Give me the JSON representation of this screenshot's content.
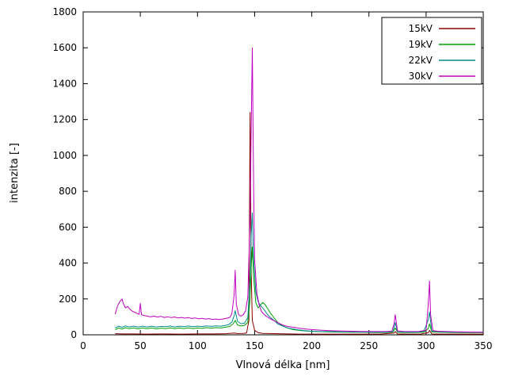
{
  "chart_data": {
    "type": "line",
    "title": "",
    "xlabel": "Vlnová délka [nm]",
    "ylabel": "intenzita [-]",
    "xlim": [
      0,
      350
    ],
    "ylim": [
      0,
      1800
    ],
    "xticks": [
      0,
      50,
      100,
      150,
      200,
      250,
      300,
      350
    ],
    "yticks": [
      0,
      200,
      400,
      600,
      800,
      1000,
      1200,
      1400,
      1600,
      1800
    ],
    "grid": false,
    "legend": {
      "position": "top-right",
      "box": true
    },
    "series": [
      {
        "name": "15kV",
        "color": "#8b0000",
        "points": [
          [
            28,
            6
          ],
          [
            35,
            5
          ],
          [
            45,
            5
          ],
          [
            55,
            4
          ],
          [
            70,
            5
          ],
          [
            85,
            4
          ],
          [
            100,
            5
          ],
          [
            115,
            5
          ],
          [
            125,
            6
          ],
          [
            132,
            10
          ],
          [
            135,
            7
          ],
          [
            140,
            8
          ],
          [
            143,
            10
          ],
          [
            145,
            80
          ],
          [
            146,
            1240
          ],
          [
            147,
            350
          ],
          [
            148,
            80
          ],
          [
            150,
            25
          ],
          [
            153,
            12
          ],
          [
            157,
            8
          ],
          [
            162,
            7
          ],
          [
            170,
            6
          ],
          [
            180,
            5
          ],
          [
            190,
            4
          ],
          [
            200,
            4
          ],
          [
            215,
            4
          ],
          [
            230,
            4
          ],
          [
            245,
            4
          ],
          [
            260,
            4
          ],
          [
            272,
            10
          ],
          [
            273,
            18
          ],
          [
            275,
            5
          ],
          [
            285,
            4
          ],
          [
            295,
            4
          ],
          [
            302,
            12
          ],
          [
            303,
            25
          ],
          [
            305,
            5
          ],
          [
            315,
            4
          ],
          [
            330,
            4
          ],
          [
            350,
            4
          ]
        ]
      },
      {
        "name": "19kV",
        "color": "#00a000",
        "points": [
          [
            28,
            28
          ],
          [
            31,
            38
          ],
          [
            34,
            32
          ],
          [
            37,
            40
          ],
          [
            40,
            34
          ],
          [
            44,
            38
          ],
          [
            48,
            33
          ],
          [
            52,
            38
          ],
          [
            56,
            34
          ],
          [
            60,
            38
          ],
          [
            64,
            33
          ],
          [
            68,
            37
          ],
          [
            72,
            35
          ],
          [
            76,
            39
          ],
          [
            80,
            34
          ],
          [
            84,
            38
          ],
          [
            88,
            35
          ],
          [
            92,
            39
          ],
          [
            96,
            35
          ],
          [
            100,
            38
          ],
          [
            104,
            36
          ],
          [
            108,
            40
          ],
          [
            112,
            37
          ],
          [
            116,
            40
          ],
          [
            120,
            38
          ],
          [
            124,
            42
          ],
          [
            128,
            46
          ],
          [
            131,
            60
          ],
          [
            133,
            80
          ],
          [
            135,
            55
          ],
          [
            138,
            50
          ],
          [
            141,
            52
          ],
          [
            144,
            70
          ],
          [
            146,
            200
          ],
          [
            147,
            380
          ],
          [
            148,
            490
          ],
          [
            149,
            330
          ],
          [
            151,
            180
          ],
          [
            153,
            150
          ],
          [
            155,
            165
          ],
          [
            157,
            180
          ],
          [
            159,
            170
          ],
          [
            161,
            150
          ],
          [
            164,
            120
          ],
          [
            167,
            95
          ],
          [
            170,
            70
          ],
          [
            174,
            52
          ],
          [
            178,
            40
          ],
          [
            183,
            30
          ],
          [
            188,
            25
          ],
          [
            193,
            22
          ],
          [
            198,
            20
          ],
          [
            205,
            18
          ],
          [
            215,
            16
          ],
          [
            225,
            15
          ],
          [
            235,
            14
          ],
          [
            245,
            14
          ],
          [
            255,
            13
          ],
          [
            265,
            13
          ],
          [
            271,
            15
          ],
          [
            273,
            38
          ],
          [
            275,
            14
          ],
          [
            282,
            13
          ],
          [
            290,
            13
          ],
          [
            298,
            14
          ],
          [
            302,
            35
          ],
          [
            303,
            62
          ],
          [
            305,
            16
          ],
          [
            312,
            14
          ],
          [
            322,
            13
          ],
          [
            334,
            12
          ],
          [
            345,
            12
          ],
          [
            350,
            12
          ]
        ]
      },
      {
        "name": "22kV",
        "color": "#008b8b",
        "points": [
          [
            28,
            38
          ],
          [
            31,
            48
          ],
          [
            34,
            42
          ],
          [
            37,
            50
          ],
          [
            40,
            44
          ],
          [
            44,
            48
          ],
          [
            48,
            43
          ],
          [
            52,
            48
          ],
          [
            56,
            44
          ],
          [
            60,
            48
          ],
          [
            64,
            43
          ],
          [
            68,
            47
          ],
          [
            72,
            45
          ],
          [
            76,
            49
          ],
          [
            80,
            44
          ],
          [
            84,
            48
          ],
          [
            88,
            45
          ],
          [
            92,
            49
          ],
          [
            96,
            45
          ],
          [
            100,
            48
          ],
          [
            104,
            46
          ],
          [
            108,
            50
          ],
          [
            112,
            47
          ],
          [
            116,
            50
          ],
          [
            120,
            48
          ],
          [
            124,
            52
          ],
          [
            127,
            56
          ],
          [
            130,
            70
          ],
          [
            132,
            105
          ],
          [
            133,
            135
          ],
          [
            135,
            75
          ],
          [
            138,
            62
          ],
          [
            141,
            64
          ],
          [
            144,
            95
          ],
          [
            146,
            320
          ],
          [
            147,
            560
          ],
          [
            148,
            680
          ],
          [
            149,
            430
          ],
          [
            151,
            240
          ],
          [
            153,
            185
          ],
          [
            155,
            165
          ],
          [
            157,
            150
          ],
          [
            159,
            135
          ],
          [
            161,
            115
          ],
          [
            164,
            95
          ],
          [
            167,
            80
          ],
          [
            170,
            62
          ],
          [
            174,
            50
          ],
          [
            178,
            40
          ],
          [
            183,
            33
          ],
          [
            188,
            28
          ],
          [
            193,
            24
          ],
          [
            198,
            21
          ],
          [
            205,
            19
          ],
          [
            215,
            18
          ],
          [
            225,
            17
          ],
          [
            235,
            16
          ],
          [
            245,
            15
          ],
          [
            255,
            15
          ],
          [
            265,
            15
          ],
          [
            271,
            18
          ],
          [
            272,
            42
          ],
          [
            273,
            68
          ],
          [
            275,
            17
          ],
          [
            282,
            15
          ],
          [
            290,
            15
          ],
          [
            298,
            18
          ],
          [
            302,
            85
          ],
          [
            303,
            128
          ],
          [
            305,
            20
          ],
          [
            312,
            16
          ],
          [
            322,
            15
          ],
          [
            334,
            14
          ],
          [
            345,
            14
          ],
          [
            350,
            14
          ]
        ]
      },
      {
        "name": "30kV",
        "color": "#c000c0",
        "points": [
          [
            28,
            115
          ],
          [
            30,
            160
          ],
          [
            32,
            185
          ],
          [
            34,
            200
          ],
          [
            35,
            175
          ],
          [
            37,
            150
          ],
          [
            39,
            158
          ],
          [
            41,
            142
          ],
          [
            43,
            132
          ],
          [
            45,
            126
          ],
          [
            47,
            120
          ],
          [
            49,
            114
          ],
          [
            50,
            175
          ],
          [
            51,
            112
          ],
          [
            53,
            108
          ],
          [
            56,
            104
          ],
          [
            59,
            100
          ],
          [
            62,
            104
          ],
          [
            65,
            99
          ],
          [
            68,
            103
          ],
          [
            71,
            97
          ],
          [
            74,
            101
          ],
          [
            77,
            96
          ],
          [
            80,
            99
          ],
          [
            83,
            94
          ],
          [
            86,
            97
          ],
          [
            89,
            93
          ],
          [
            92,
            96
          ],
          [
            95,
            91
          ],
          [
            98,
            94
          ],
          [
            101,
            89
          ],
          [
            104,
            92
          ],
          [
            107,
            88
          ],
          [
            110,
            90
          ],
          [
            113,
            86
          ],
          [
            116,
            88
          ],
          [
            119,
            85
          ],
          [
            122,
            88
          ],
          [
            125,
            92
          ],
          [
            128,
            96
          ],
          [
            130,
            115
          ],
          [
            132,
            220
          ],
          [
            133,
            360
          ],
          [
            134,
            170
          ],
          [
            136,
            112
          ],
          [
            138,
            104
          ],
          [
            140,
            112
          ],
          [
            142,
            132
          ],
          [
            144,
            210
          ],
          [
            146,
            650
          ],
          [
            147,
            1150
          ],
          [
            148,
            1600
          ],
          [
            149,
            880
          ],
          [
            150,
            420
          ],
          [
            152,
            230
          ],
          [
            154,
            165
          ],
          [
            156,
            130
          ],
          [
            158,
            115
          ],
          [
            160,
            105
          ],
          [
            163,
            92
          ],
          [
            166,
            82
          ],
          [
            169,
            72
          ],
          [
            172,
            62
          ],
          [
            175,
            54
          ],
          [
            178,
            48
          ],
          [
            182,
            44
          ],
          [
            186,
            40
          ],
          [
            190,
            36
          ],
          [
            195,
            32
          ],
          [
            200,
            29
          ],
          [
            207,
            26
          ],
          [
            214,
            24
          ],
          [
            221,
            22
          ],
          [
            228,
            21
          ],
          [
            235,
            20
          ],
          [
            242,
            19
          ],
          [
            250,
            18
          ],
          [
            258,
            18
          ],
          [
            265,
            18
          ],
          [
            270,
            20
          ],
          [
            272,
            62
          ],
          [
            273,
            112
          ],
          [
            275,
            22
          ],
          [
            280,
            19
          ],
          [
            287,
            18
          ],
          [
            294,
            19
          ],
          [
            300,
            26
          ],
          [
            302,
            175
          ],
          [
            303,
            300
          ],
          [
            304,
            110
          ],
          [
            306,
            24
          ],
          [
            310,
            20
          ],
          [
            318,
            18
          ],
          [
            326,
            17
          ],
          [
            334,
            16
          ],
          [
            342,
            15
          ],
          [
            350,
            15
          ]
        ]
      }
    ]
  }
}
